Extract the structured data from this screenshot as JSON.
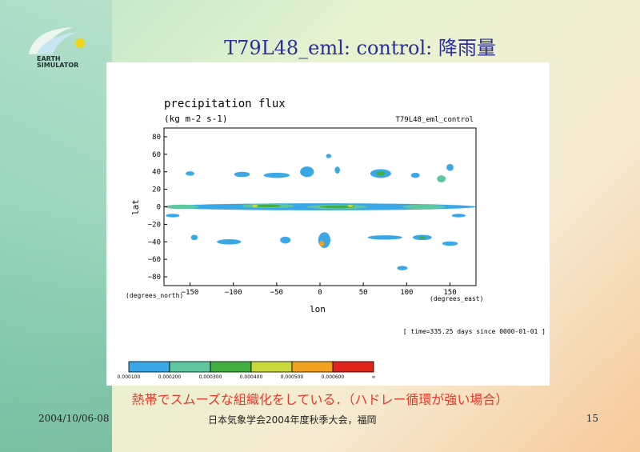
{
  "slide": {
    "title": "T79L48_eml: control: 降雨量",
    "logo_line1": "EARTH",
    "logo_line2": "SIMULATOR",
    "note": "熱帯でスムーズな組織化をしている．（ハドレー循環が強い場合）",
    "date": "2004/10/06-08",
    "venue": "日本気象学会2004年度秋季大会，福岡",
    "page": "15"
  },
  "colors": {
    "title": "#2a2f9a",
    "note": "#e23b2b",
    "levels": [
      "#3aa7e6",
      "#5fc7a0",
      "#3fb03f",
      "#c8d83a",
      "#f2a21e",
      "#e0241b"
    ]
  },
  "chart_data": {
    "type": "heatmap",
    "title": "precipitation flux",
    "subtitle": "(kg m-2 s-1)",
    "run_label": "T79L48_eml_control",
    "xlabel": "lon",
    "ylabel": "lat",
    "x_unit_label": "(degrees_east)",
    "y_unit_label": "(degrees_north)",
    "xlim": [
      -180,
      180
    ],
    "ylim": [
      -90,
      90
    ],
    "x_ticks": [
      -150,
      -100,
      -50,
      0,
      50,
      100,
      150
    ],
    "y_ticks": [
      80,
      60,
      40,
      20,
      0,
      -20,
      -40,
      -60,
      -80
    ],
    "time_label": "[ time=335.25 days since 0000-01-01 ]",
    "colorbar_levels": [
      "0.000100",
      "0.000200",
      "0.000300",
      "0.000400",
      "0.000500",
      "0.000600",
      "∞"
    ],
    "regions": [
      {
        "lon": 0,
        "lat": 0,
        "w": 360,
        "h": 8,
        "level": 1
      },
      {
        "lon": -160,
        "lat": 0,
        "w": 40,
        "h": 5,
        "level": 2
      },
      {
        "lon": -60,
        "lat": 1,
        "w": 60,
        "h": 5,
        "level": 2
      },
      {
        "lon": 20,
        "lat": 0,
        "w": 70,
        "h": 5,
        "level": 2
      },
      {
        "lon": 120,
        "lat": 0,
        "w": 50,
        "h": 5,
        "level": 2
      },
      {
        "lon": -60,
        "lat": 1,
        "w": 30,
        "h": 3,
        "level": 3
      },
      {
        "lon": 20,
        "lat": 0,
        "w": 40,
        "h": 3,
        "level": 3
      },
      {
        "lon": -75,
        "lat": 1,
        "w": 6,
        "h": 3,
        "level": 4
      },
      {
        "lon": 35,
        "lat": 1,
        "w": 6,
        "h": 3,
        "level": 4
      },
      {
        "lon": 70,
        "lat": 38,
        "w": 24,
        "h": 10,
        "level": 1
      },
      {
        "lon": 70,
        "lat": 38,
        "w": 10,
        "h": 5,
        "level": 3
      },
      {
        "lon": 140,
        "lat": 32,
        "w": 10,
        "h": 8,
        "level": 2
      },
      {
        "lon": -90,
        "lat": 37,
        "w": 18,
        "h": 6,
        "level": 1
      },
      {
        "lon": -150,
        "lat": 38,
        "w": 10,
        "h": 5,
        "level": 1
      },
      {
        "lon": -50,
        "lat": 36,
        "w": 30,
        "h": 6,
        "level": 1
      },
      {
        "lon": -15,
        "lat": 40,
        "w": 16,
        "h": 12,
        "level": 1
      },
      {
        "lon": 10,
        "lat": 58,
        "w": 6,
        "h": 5,
        "level": 1
      },
      {
        "lon": 20,
        "lat": 42,
        "w": 6,
        "h": 8,
        "level": 1
      },
      {
        "lon": 110,
        "lat": 36,
        "w": 10,
        "h": 6,
        "level": 1
      },
      {
        "lon": 150,
        "lat": 45,
        "w": 8,
        "h": 8,
        "level": 1
      },
      {
        "lon": 5,
        "lat": -38,
        "w": 14,
        "h": 18,
        "level": 1
      },
      {
        "lon": 2,
        "lat": -42,
        "w": 6,
        "h": 6,
        "level": 5
      },
      {
        "lon": -40,
        "lat": -38,
        "w": 12,
        "h": 8,
        "level": 1
      },
      {
        "lon": -105,
        "lat": -40,
        "w": 28,
        "h": 6,
        "level": 1
      },
      {
        "lon": -145,
        "lat": -35,
        "w": 8,
        "h": 6,
        "level": 1
      },
      {
        "lon": 75,
        "lat": -35,
        "w": 40,
        "h": 5,
        "level": 1
      },
      {
        "lon": 118,
        "lat": -35,
        "w": 22,
        "h": 6,
        "level": 1
      },
      {
        "lon": 118,
        "lat": -35,
        "w": 8,
        "h": 3,
        "level": 3
      },
      {
        "lon": 95,
        "lat": -70,
        "w": 12,
        "h": 5,
        "level": 1
      },
      {
        "lon": 150,
        "lat": -42,
        "w": 18,
        "h": 5,
        "level": 1
      },
      {
        "lon": -170,
        "lat": -10,
        "w": 16,
        "h": 4,
        "level": 1
      },
      {
        "lon": 160,
        "lat": -10,
        "w": 16,
        "h": 4,
        "level": 1
      }
    ]
  }
}
